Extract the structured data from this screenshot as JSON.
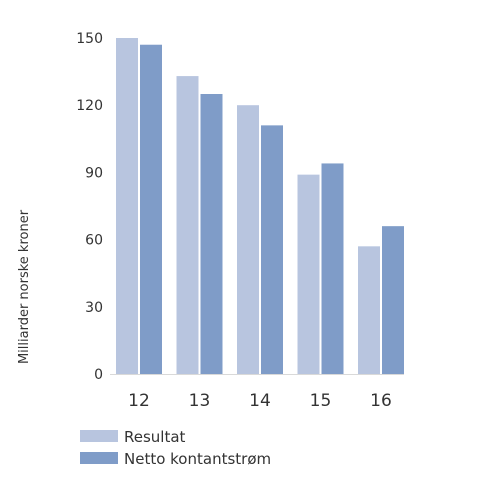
{
  "chart_data": {
    "type": "bar",
    "title": "",
    "xlabel": "",
    "ylabel": "Milliarder norske kroner",
    "categories": [
      "12",
      "13",
      "14",
      "15",
      "16"
    ],
    "series": [
      {
        "name": "Resultat",
        "values": [
          150,
          133,
          120,
          89,
          57
        ],
        "color": "#b8c5df"
      },
      {
        "name": "Netto kontantstrøm",
        "values": [
          147,
          125,
          111,
          94,
          66
        ],
        "color": "#7f9cc8"
      }
    ],
    "ylim": [
      0,
      150
    ],
    "yticks": [
      0,
      30,
      60,
      90,
      120,
      150
    ],
    "grid": false,
    "legend_position": "bottom-left"
  }
}
